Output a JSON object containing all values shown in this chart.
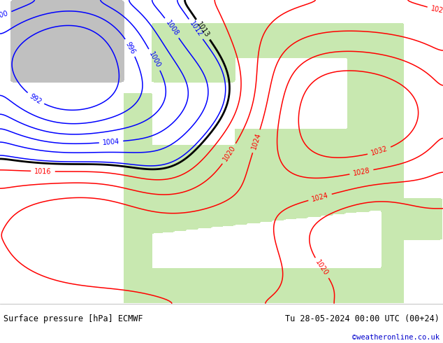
{
  "title_left": "Surface pressure [hPa] ECMWF",
  "title_right": "Tu 28-05-2024 00:00 UTC (00+24)",
  "credit": "©weatheronline.co.uk",
  "credit_color": "#0000cc",
  "land_color": "#c8e8b0",
  "sea_color": "#c8dced",
  "text_color": "#000000",
  "figsize": [
    6.34,
    4.9
  ],
  "dpi": 100
}
